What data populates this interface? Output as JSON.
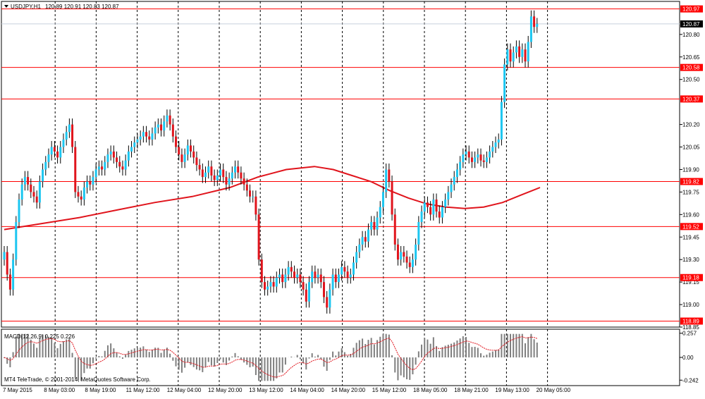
{
  "header": {
    "symbol_label": "USDJPY,H1",
    "ohlc_text": "120.89 120.91 120.83 120.87"
  },
  "current_price": {
    "value": 120.87,
    "label": "120.87",
    "color": "#c8d0dc"
  },
  "macd": {
    "label": "MACD(12,26,9) 0.225 0.226",
    "ticks": [
      {
        "value": 0.257,
        "label": "0.257"
      },
      {
        "value": 0.0,
        "label": "0.00"
      },
      {
        "value": -0.242,
        "label": "-0.242"
      }
    ]
  },
  "copyright": "MT4 TeleTrade, © 2001-2014, MetaQuotes Software Corp.",
  "colors": {
    "bull": "#1cc6f0",
    "bear": "#e0141c",
    "level": "#ff0000",
    "ma": "#e0141c",
    "macd_hist": "#7f7f7f",
    "macd_signal": "#e0141c"
  },
  "chart_data": {
    "type": "candlestick",
    "ylim": [
      118.85,
      121.02
    ],
    "y_ticks": [
      {
        "value": 120.8,
        "label": "120.80"
      },
      {
        "value": 120.65,
        "label": "120.65"
      },
      {
        "value": 120.5,
        "label": "120.50"
      },
      {
        "value": 120.2,
        "label": "120.20"
      },
      {
        "value": 120.05,
        "label": "120.05"
      },
      {
        "value": 119.9,
        "label": "119.90"
      },
      {
        "value": 119.75,
        "label": "119.75"
      },
      {
        "value": 119.6,
        "label": "119.60"
      },
      {
        "value": 119.45,
        "label": "119.45"
      },
      {
        "value": 119.3,
        "label": "119.30"
      },
      {
        "value": 119.15,
        "label": "119.15"
      },
      {
        "value": 119.0,
        "label": "119.00"
      },
      {
        "value": 118.85,
        "label": "118.85"
      }
    ],
    "levels": [
      {
        "value": 120.97,
        "label": "120.97"
      },
      {
        "value": 120.58,
        "label": "120.58"
      },
      {
        "value": 120.37,
        "label": "120.37"
      },
      {
        "value": 119.82,
        "label": "119.82"
      },
      {
        "value": 119.52,
        "label": "119.52"
      },
      {
        "value": 119.18,
        "label": "119.18"
      },
      {
        "value": 118.89,
        "label": "118.89"
      }
    ],
    "x_labels": [
      "7 May 2015",
      "8 May 03:00",
      "8 May 19:00",
      "11 May 12:00",
      "12 May 04:00",
      "12 May 20:00",
      "13 May 12:00",
      "14 May 04:00",
      "14 May 20:00",
      "15 May 12:00",
      "18 May 05:00",
      "18 May 21:00",
      "19 May 13:00",
      "20 May 05:00"
    ],
    "ma_path": [
      [
        0,
        119.5
      ],
      [
        20,
        119.54
      ],
      [
        40,
        119.58
      ],
      [
        60,
        119.63
      ],
      [
        80,
        119.68
      ],
      [
        100,
        119.72
      ],
      [
        120,
        119.78
      ],
      [
        135,
        119.85
      ],
      [
        150,
        119.9
      ],
      [
        165,
        119.92
      ],
      [
        175,
        119.9
      ],
      [
        185,
        119.86
      ],
      [
        195,
        119.82
      ],
      [
        205,
        119.76
      ],
      [
        215,
        119.71
      ],
      [
        225,
        119.67
      ],
      [
        235,
        119.65
      ],
      [
        245,
        119.64
      ],
      [
        255,
        119.65
      ],
      [
        265,
        119.68
      ],
      [
        275,
        119.73
      ],
      [
        285,
        119.78
      ]
    ],
    "candles_close": [
      119.35,
      119.2,
      119.1,
      119.3,
      119.55,
      119.7,
      119.8,
      119.85,
      119.8,
      119.75,
      119.72,
      119.68,
      119.82,
      119.9,
      119.95,
      120.0,
      120.05,
      120.02,
      119.98,
      120.05,
      120.1,
      120.15,
      120.2,
      120.05,
      119.75,
      119.72,
      119.7,
      119.78,
      119.82,
      119.8,
      119.85,
      119.9,
      119.92,
      119.9,
      119.95,
      120.0,
      120.02,
      119.98,
      119.95,
      119.92,
      119.9,
      119.96,
      120.02,
      120.05,
      120.08,
      120.1,
      120.12,
      120.15,
      120.12,
      120.1,
      120.14,
      120.18,
      120.2,
      120.16,
      120.22,
      120.26,
      120.2,
      120.12,
      120.05,
      120.0,
      119.95,
      120.0,
      120.06,
      120.02,
      119.98,
      119.93,
      119.9,
      119.85,
      119.88,
      119.92,
      119.86,
      119.83,
      119.86,
      119.9,
      119.85,
      119.8,
      119.84,
      119.88,
      119.92,
      119.88,
      119.84,
      119.8,
      119.76,
      119.72,
      119.72,
      119.6,
      119.3,
      119.15,
      119.1,
      119.12,
      119.15,
      119.12,
      119.18,
      119.2,
      119.15,
      119.2,
      119.25,
      119.22,
      119.18,
      119.2,
      119.15,
      119.1,
      119.02,
      119.15,
      119.22,
      119.18,
      119.2,
      119.15,
      119.05,
      118.98,
      119.1,
      119.2,
      119.15,
      119.2,
      119.25,
      119.22,
      119.18,
      119.2,
      119.28,
      119.35,
      119.4,
      119.45,
      119.42,
      119.5,
      119.55,
      119.5,
      119.58,
      119.65,
      119.75,
      119.9,
      119.82,
      119.6,
      119.4,
      119.3,
      119.35,
      119.32,
      119.28,
      119.25,
      119.3,
      119.4,
      119.55,
      119.62,
      119.68,
      119.65,
      119.6,
      119.7,
      119.62,
      119.58,
      119.65,
      119.7,
      119.75,
      119.8,
      119.85,
      119.9,
      119.95,
      120.0,
      120.02,
      119.98,
      119.95,
      119.98,
      120.0,
      119.96,
      119.95,
      119.98,
      120.02,
      120.05,
      120.08,
      120.1,
      120.35,
      120.6,
      120.7,
      120.62,
      120.68,
      120.72,
      120.65,
      120.7,
      120.62,
      120.75,
      120.92,
      120.85,
      120.87
    ]
  }
}
